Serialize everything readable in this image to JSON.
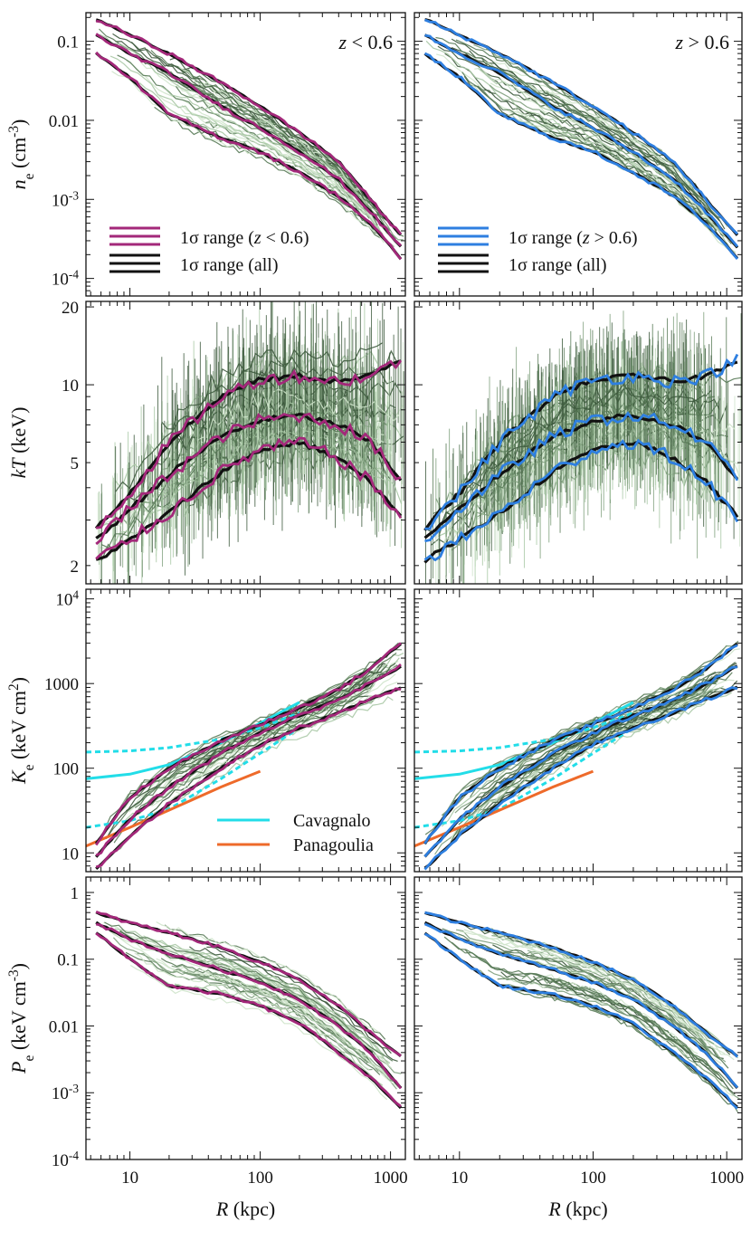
{
  "chart_data": {
    "type": "line",
    "x_axis": {
      "label": "R (kpc)",
      "scale": "log",
      "range": [
        4.6,
        1300
      ],
      "ticks": [
        {
          "value": 10,
          "label": "10"
        },
        {
          "value": 100,
          "label": "100"
        },
        {
          "value": 1000,
          "label": "1000"
        }
      ]
    },
    "columns": [
      {
        "label": "z < 0.6",
        "accent": "#a3287a"
      },
      {
        "label": "z > 0.6",
        "accent": "#2e7fe0"
      }
    ],
    "colors": {
      "accent_low_z": "#a3287a",
      "accent_high_z": "#2e7fe0",
      "all_range": "#111111",
      "cavagnalo": "#22dde8",
      "panagoulia": "#ee6a2a",
      "cluster_lines": [
        "#3d5a3d",
        "#587a57",
        "#7fa07d",
        "#a8c8a5",
        "#cfe4cb"
      ]
    },
    "rows": [
      {
        "id": "ne",
        "ylabel": "n_e (cm^-3)",
        "scale": "log",
        "ylim": [
          6e-05,
          0.23
        ],
        "ticks": [
          {
            "value": 0.0001,
            "label": "10^-4"
          },
          {
            "value": 0.001,
            "label": "10^-3"
          },
          {
            "value": 0.01,
            "label": "0.01"
          },
          {
            "value": 0.1,
            "label": "0.1"
          }
        ],
        "median": [
          [
            5.5,
            0.12
          ],
          [
            10,
            0.07
          ],
          [
            20,
            0.04
          ],
          [
            50,
            0.015
          ],
          [
            100,
            0.008
          ],
          [
            200,
            0.004
          ],
          [
            400,
            0.0018
          ],
          [
            700,
            0.0007
          ],
          [
            1200,
            0.00025
          ]
        ],
        "low_all": [
          [
            5.5,
            0.07
          ],
          [
            10,
            0.035
          ],
          [
            20,
            0.012
          ],
          [
            50,
            0.006
          ],
          [
            100,
            0.004
          ],
          [
            200,
            0.0022
          ],
          [
            400,
            0.0011
          ],
          [
            700,
            0.0005
          ],
          [
            1200,
            0.00018
          ]
        ],
        "high_all": [
          [
            5.5,
            0.19
          ],
          [
            10,
            0.12
          ],
          [
            20,
            0.07
          ],
          [
            50,
            0.03
          ],
          [
            100,
            0.015
          ],
          [
            200,
            0.007
          ],
          [
            400,
            0.003
          ],
          [
            700,
            0.001
          ],
          [
            1200,
            0.00035
          ]
        ]
      },
      {
        "id": "kT",
        "ylabel": "kT (keV)",
        "scale": "log",
        "ylim": [
          1.7,
          21
        ],
        "ticks": [
          {
            "value": 2,
            "label": "2"
          },
          {
            "value": 5,
            "label": "5"
          },
          {
            "value": 10,
            "label": "10"
          },
          {
            "value": 20,
            "label": "20"
          }
        ],
        "median": [
          [
            5.5,
            2.5
          ],
          [
            10,
            3.3
          ],
          [
            20,
            4.5
          ],
          [
            50,
            6.3
          ],
          [
            100,
            7.3
          ],
          [
            200,
            7.6
          ],
          [
            400,
            7.0
          ],
          [
            700,
            6.0
          ],
          [
            1200,
            4.3
          ]
        ],
        "low_all": [
          [
            5.5,
            2.1
          ],
          [
            10,
            2.5
          ],
          [
            20,
            3.2
          ],
          [
            50,
            4.6
          ],
          [
            100,
            5.6
          ],
          [
            200,
            6.0
          ],
          [
            400,
            5.2
          ],
          [
            700,
            4.2
          ],
          [
            1200,
            3.1
          ]
        ],
        "high_all": [
          [
            5.5,
            2.8
          ],
          [
            10,
            3.8
          ],
          [
            20,
            6.0
          ],
          [
            50,
            9.0
          ],
          [
            100,
            10.5
          ],
          [
            200,
            10.8
          ],
          [
            400,
            10.3
          ],
          [
            700,
            10.8
          ],
          [
            1200,
            12.5
          ]
        ]
      },
      {
        "id": "Ke",
        "ylabel": "K_e (keV cm^2)",
        "scale": "log",
        "ylim": [
          6,
          13000
        ],
        "ticks": [
          {
            "value": 10,
            "label": "10"
          },
          {
            "value": 100,
            "label": "100"
          },
          {
            "value": 1000,
            "label": "1000"
          },
          {
            "value": 10000,
            "label": "10^4"
          }
        ],
        "median": [
          [
            5.5,
            9
          ],
          [
            10,
            25
          ],
          [
            20,
            60
          ],
          [
            50,
            150
          ],
          [
            100,
            260
          ],
          [
            200,
            420
          ],
          [
            400,
            650
          ],
          [
            700,
            1000
          ],
          [
            1200,
            1600
          ]
        ],
        "low_all": [
          [
            5.5,
            6.5
          ],
          [
            10,
            16
          ],
          [
            20,
            38
          ],
          [
            50,
            100
          ],
          [
            100,
            190
          ],
          [
            200,
            300
          ],
          [
            400,
            450
          ],
          [
            700,
            650
          ],
          [
            1200,
            900
          ]
        ],
        "high_all": [
          [
            5.5,
            13
          ],
          [
            10,
            45
          ],
          [
            20,
            100
          ],
          [
            50,
            210
          ],
          [
            100,
            330
          ],
          [
            200,
            520
          ],
          [
            400,
            850
          ],
          [
            700,
            1500
          ],
          [
            1200,
            3000
          ]
        ],
        "reference": [
          {
            "name": "Cavagnalo",
            "style": "solid",
            "color": "#22dde8",
            "points": [
              [
                4.6,
                75
              ],
              [
                10,
                85
              ],
              [
                20,
                110
              ],
              [
                50,
                200
              ],
              [
                100,
                340
              ],
              [
                200,
                600
              ]
            ]
          },
          {
            "name": "Cavagnalo",
            "style": "dashed",
            "color": "#22dde8",
            "points": [
              [
                4.6,
                155
              ],
              [
                10,
                160
              ],
              [
                20,
                175
              ],
              [
                50,
                220
              ],
              [
                100,
                300
              ],
              [
                200,
                450
              ]
            ]
          },
          {
            "name": "Cavagnalo",
            "style": "dashed",
            "color": "#22dde8",
            "points": [
              [
                4.6,
                20
              ],
              [
                10,
                24
              ],
              [
                20,
                33
              ],
              [
                50,
                75
              ],
              [
                100,
                150
              ],
              [
                200,
                300
              ]
            ]
          },
          {
            "name": "Panagoulia",
            "style": "solid",
            "color": "#ee6a2a",
            "points": [
              [
                4.6,
                12
              ],
              [
                10,
                20
              ],
              [
                20,
                32
              ],
              [
                50,
                60
              ],
              [
                100,
                92
              ]
            ]
          }
        ]
      },
      {
        "id": "Pe",
        "ylabel": "P_e (keV cm^-3)",
        "scale": "log",
        "ylim": [
          0.0001,
          1.7
        ],
        "ticks": [
          {
            "value": 0.0001,
            "label": "10^-4"
          },
          {
            "value": 0.001,
            "label": "10^-3"
          },
          {
            "value": 0.01,
            "label": "0.01"
          },
          {
            "value": 0.1,
            "label": "0.1"
          },
          {
            "value": 1,
            "label": "1"
          }
        ],
        "median": [
          [
            5.5,
            0.35
          ],
          [
            10,
            0.2
          ],
          [
            20,
            0.12
          ],
          [
            50,
            0.07
          ],
          [
            100,
            0.045
          ],
          [
            200,
            0.025
          ],
          [
            400,
            0.01
          ],
          [
            700,
            0.004
          ],
          [
            1200,
            0.0012
          ]
        ],
        "low_all": [
          [
            5.5,
            0.25
          ],
          [
            10,
            0.1
          ],
          [
            20,
            0.04
          ],
          [
            50,
            0.03
          ],
          [
            100,
            0.02
          ],
          [
            200,
            0.011
          ],
          [
            400,
            0.004
          ],
          [
            700,
            0.0017
          ],
          [
            1200,
            0.0006
          ]
        ],
        "high_all": [
          [
            5.5,
            0.5
          ],
          [
            10,
            0.35
          ],
          [
            20,
            0.25
          ],
          [
            50,
            0.15
          ],
          [
            100,
            0.09
          ],
          [
            200,
            0.05
          ],
          [
            400,
            0.02
          ],
          [
            700,
            0.008
          ],
          [
            1200,
            0.0035
          ]
        ]
      }
    ],
    "legends": {
      "ne_low_z": [
        "1σ range (z < 0.6)",
        "1σ range (all)"
      ],
      "ne_high_z": [
        "1σ range (z > 0.6)",
        "1σ range (all)"
      ],
      "ke_refs": [
        "Cavagnalo",
        "Panagoulia"
      ]
    }
  }
}
